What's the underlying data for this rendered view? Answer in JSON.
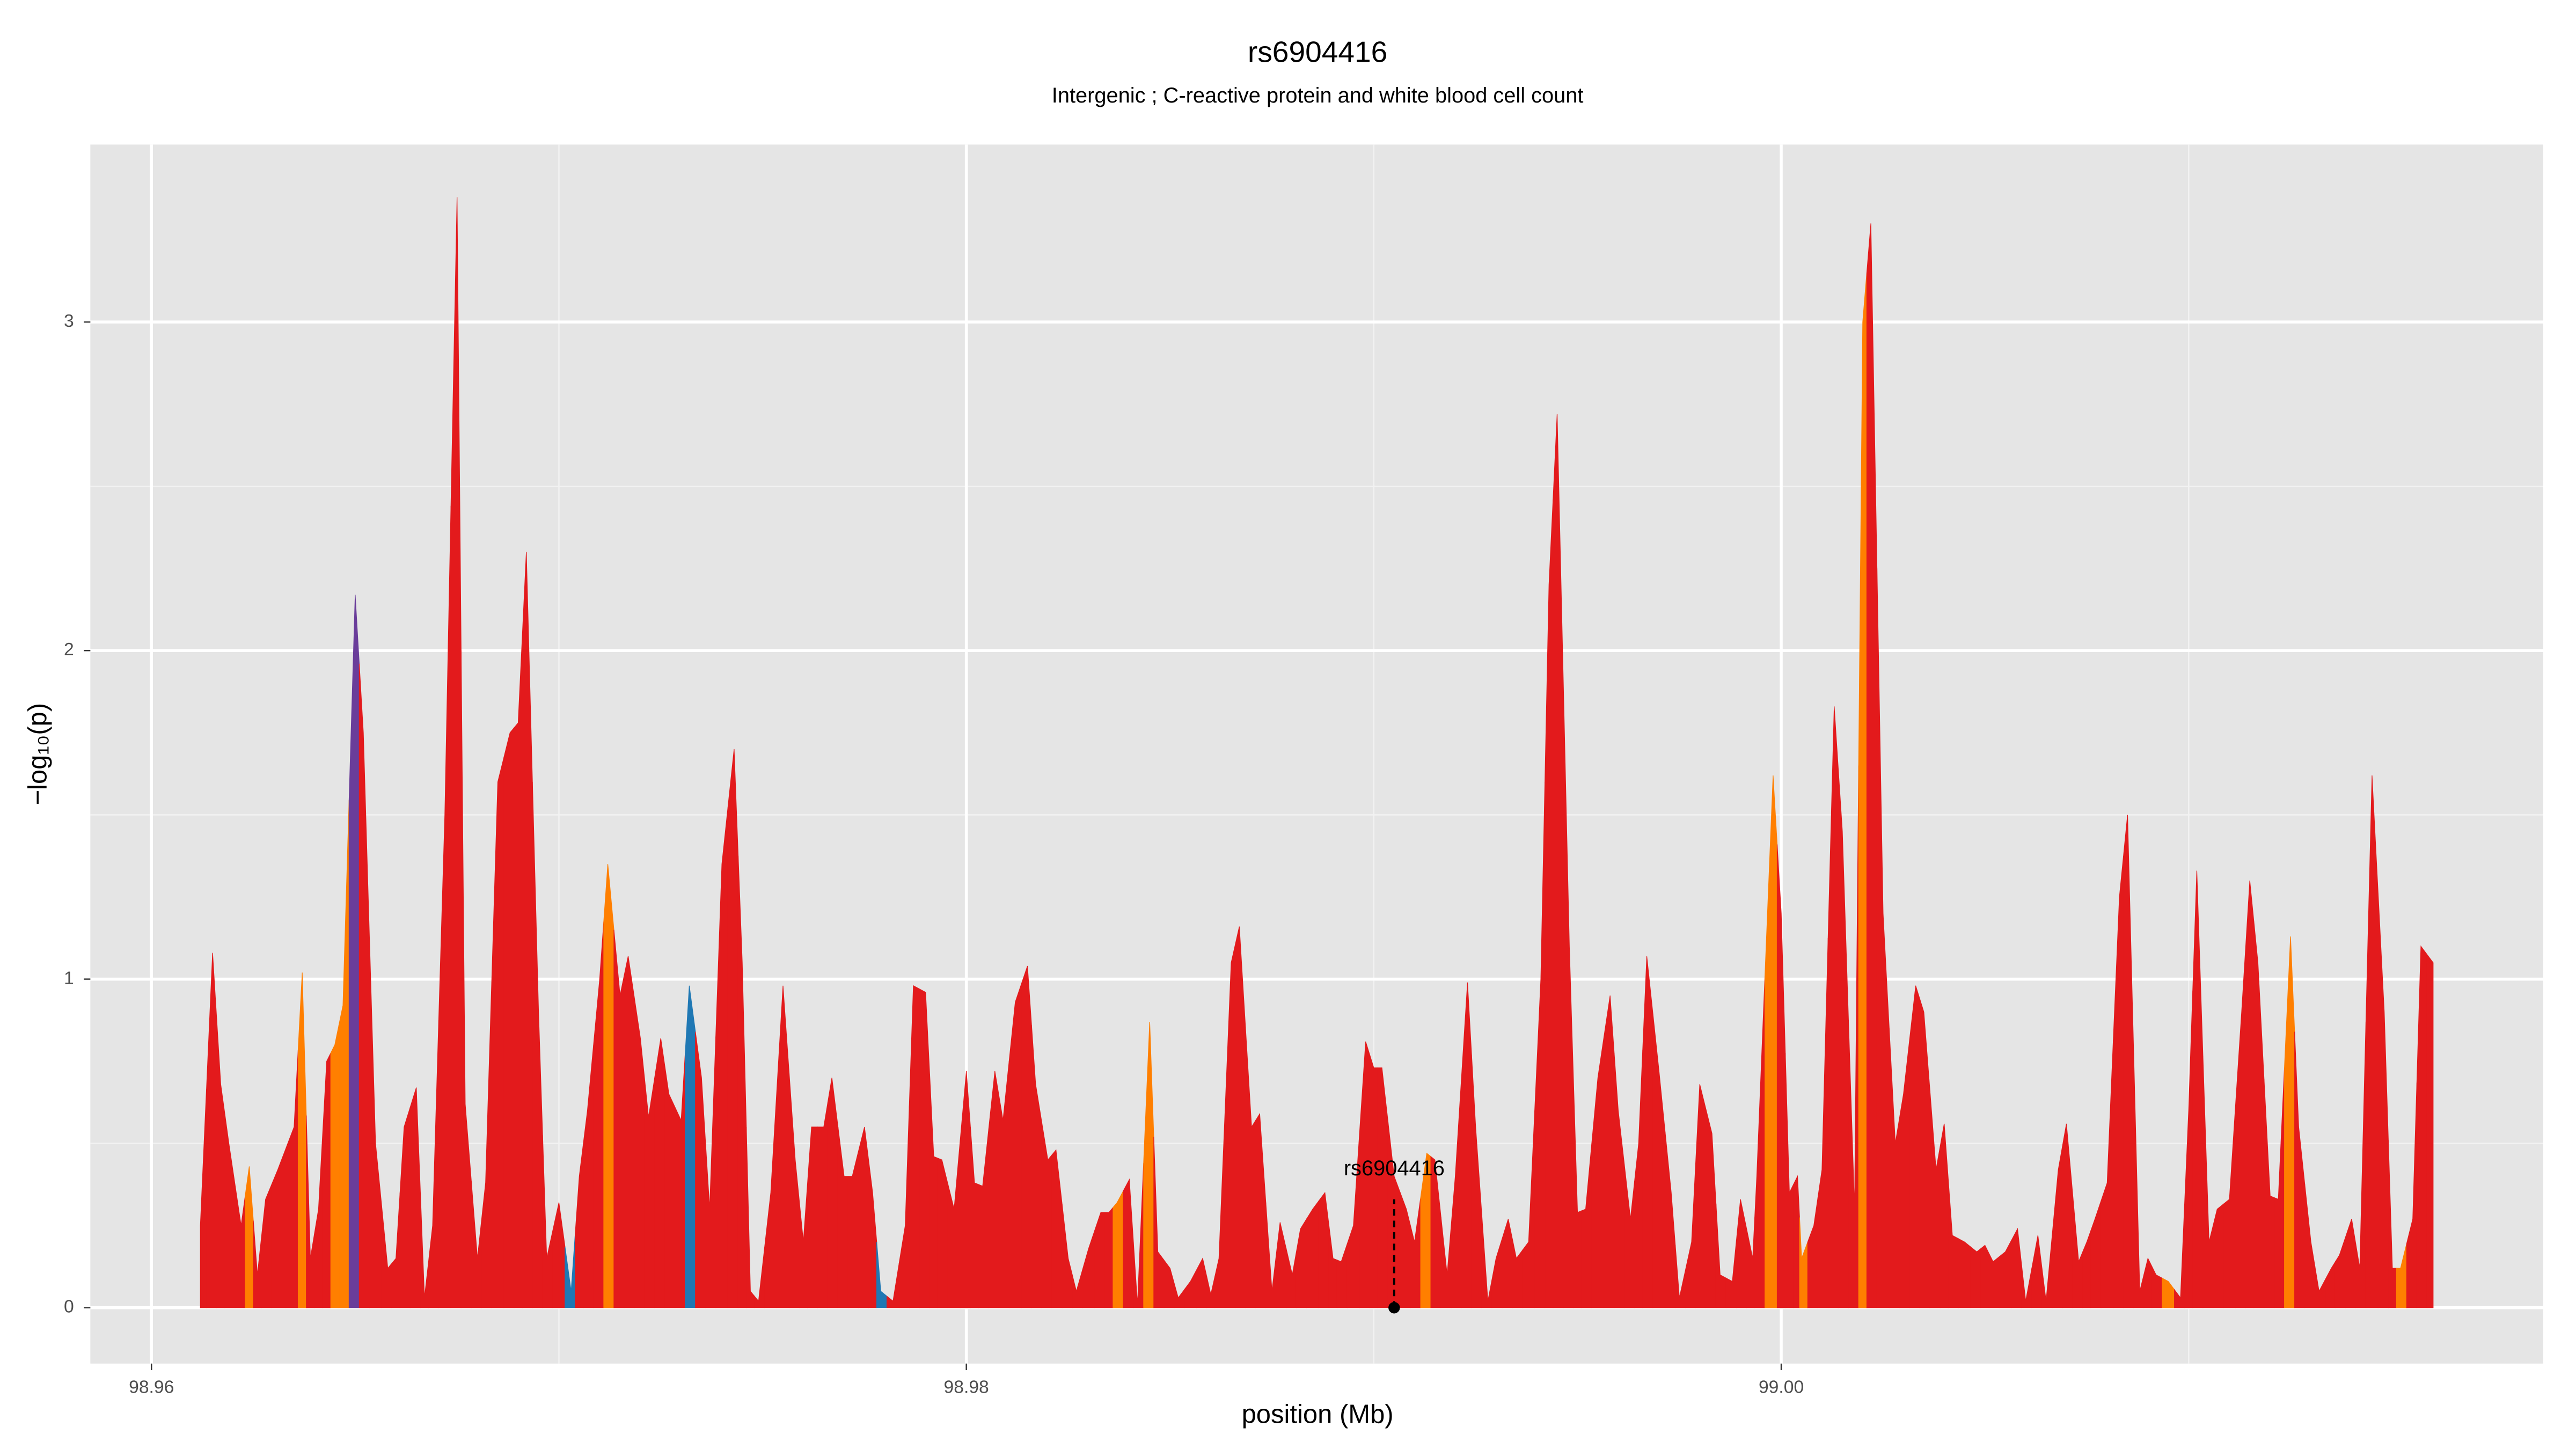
{
  "chart_data": {
    "type": "area",
    "title": "rs6904416",
    "subtitle": "Intergenic ; C-reactive protein and white blood cell count",
    "xlabel": "position (Mb)",
    "ylabel": "−log₁₀(p)",
    "xlim": [
      98.9585,
      99.0187
    ],
    "ylim": [
      -0.17,
      3.54
    ],
    "xticks": [
      98.96,
      98.98,
      {
        "value": 99,
        "label": "99.00"
      }
    ],
    "yticks": [
      0,
      1,
      2,
      3
    ],
    "minor_xticks": [
      98.97,
      98.99,
      99.01
    ],
    "minor_yticks": [
      0.5,
      1.5,
      2.5
    ],
    "grid": true,
    "x": [
      98.9612,
      98.9615,
      98.9617,
      98.9619,
      98.9622,
      98.9624,
      98.9626,
      98.9628,
      98.9631,
      98.9635,
      98.9637,
      98.9639,
      98.9641,
      98.9643,
      98.9645,
      98.9647,
      98.965,
      98.9652,
      98.9655,
      98.9658,
      98.966,
      98.9662,
      98.9665,
      98.9667,
      98.9669,
      98.9672,
      98.9675,
      98.9677,
      98.968,
      98.9682,
      98.9685,
      98.9688,
      98.969,
      98.9692,
      98.9695,
      98.9697,
      98.97,
      98.9703,
      98.9705,
      98.9707,
      98.971,
      98.9712,
      98.9715,
      98.9717,
      98.972,
      98.9722,
      98.9725,
      98.9727,
      98.973,
      98.9732,
      98.9735,
      98.9737,
      98.974,
      98.9743,
      98.9745,
      98.9747,
      98.9749,
      98.9752,
      98.9755,
      98.9758,
      98.976,
      98.9762,
      98.9765,
      98.9767,
      98.977,
      98.9772,
      98.9775,
      98.9777,
      98.9779,
      98.9782,
      98.9785,
      98.9787,
      98.979,
      98.9792,
      98.9794,
      98.9797,
      98.98,
      98.9802,
      98.9804,
      98.9807,
      98.9809,
      98.9812,
      98.9815,
      98.9817,
      98.982,
      98.9822,
      98.9825,
      98.9827,
      98.983,
      98.9833,
      98.9835,
      98.9837,
      98.984,
      98.9842,
      98.9845,
      98.9847,
      98.985,
      98.9852,
      98.9855,
      98.9858,
      98.986,
      98.9862,
      98.9865,
      98.9867,
      98.987,
      98.9872,
      98.9875,
      98.9877,
      98.988,
      98.9882,
      98.9885,
      98.9888,
      98.989,
      98.9892,
      98.9895,
      98.9898,
      98.99,
      98.9902,
      98.9905,
      98.9908,
      98.991,
      98.9913,
      98.9915,
      98.9918,
      98.992,
      98.9923,
      98.9925,
      98.9928,
      98.993,
      98.9933,
      98.9935,
      98.9938,
      98.9941,
      98.9943,
      98.9945,
      98.9948,
      98.995,
      98.9952,
      98.9955,
      98.9958,
      98.996,
      98.9963,
      98.9965,
      98.9967,
      98.997,
      98.9973,
      98.9975,
      98.9978,
      98.998,
      98.9983,
      98.9985,
      98.9988,
      98.999,
      98.9993,
      98.9994,
      98.9998,
      99.0,
      99.0002,
      99.0004,
      99.0005,
      99.0008,
      99.001,
      99.0013,
      99.0015,
      99.0018,
      99.002,
      99.0022,
      99.0025,
      99.0028,
      99.003,
      99.0033,
      99.0035,
      99.0038,
      99.004,
      99.0042,
      99.0045,
      99.0048,
      99.005,
      99.0052,
      99.0055,
      99.0058,
      99.006,
      99.0063,
      99.0065,
      99.0068,
      99.007,
      99.0073,
      99.0075,
      99.0077,
      99.008,
      99.0083,
      99.0085,
      99.0088,
      99.009,
      99.0092,
      99.0095,
      99.0098,
      99.01,
      99.0102,
      99.0105,
      99.0107,
      99.011,
      99.0113,
      99.0115,
      99.0117,
      99.012,
      99.0122,
      99.0125,
      99.0127,
      99.013,
      99.0132,
      99.0135,
      99.0137,
      99.014,
      99.0142,
      99.0145,
      99.0148,
      99.015,
      99.0152,
      99.0155,
      99.0157,
      99.016
    ],
    "values": [
      0.25,
      1.08,
      0.68,
      0.5,
      0.25,
      0.43,
      0.1,
      0.33,
      0.42,
      0.55,
      1.02,
      0.15,
      0.3,
      0.75,
      0.8,
      0.92,
      2.17,
      1.75,
      0.5,
      0.12,
      0.15,
      0.55,
      0.67,
      0.03,
      0.25,
      1.5,
      3.38,
      0.62,
      0.15,
      0.38,
      1.6,
      1.75,
      1.78,
      2.3,
      0.9,
      0.15,
      0.32,
      0.05,
      0.4,
      0.6,
      1.0,
      1.35,
      0.95,
      1.07,
      0.82,
      0.58,
      0.82,
      0.65,
      0.57,
      0.98,
      0.7,
      0.3,
      1.35,
      1.7,
      1.05,
      0.05,
      0.02,
      0.35,
      0.98,
      0.45,
      0.2,
      0.55,
      0.55,
      0.7,
      0.4,
      0.4,
      0.55,
      0.35,
      0.05,
      0.02,
      0.25,
      0.98,
      0.96,
      0.46,
      0.45,
      0.3,
      0.72,
      0.38,
      0.37,
      0.72,
      0.57,
      0.93,
      1.04,
      0.68,
      0.45,
      0.48,
      0.15,
      0.05,
      0.18,
      0.29,
      0.29,
      0.32,
      0.39,
      0.01,
      0.87,
      0.17,
      0.12,
      0.03,
      0.08,
      0.15,
      0.04,
      0.15,
      1.05,
      1.16,
      0.55,
      0.59,
      0.05,
      0.26,
      0.1,
      0.24,
      0.3,
      0.35,
      0.15,
      0.14,
      0.25,
      0.81,
      0.73,
      0.73,
      0.4,
      0.3,
      0.2,
      0.47,
      0.45,
      0.1,
      0.4,
      0.99,
      0.55,
      0.02,
      0.15,
      0.27,
      0.15,
      0.2,
      1.0,
      2.2,
      2.72,
      1.1,
      0.29,
      0.3,
      0.7,
      0.95,
      0.6,
      0.27,
      0.5,
      1.07,
      0.72,
      0.35,
      0.03,
      0.2,
      0.68,
      0.53,
      0.1,
      0.08,
      0.33,
      0.15,
      0.4,
      1.62,
      1.2,
      0.35,
      0.4,
      0.15,
      0.25,
      0.42,
      1.83,
      1.45,
      0.3,
      3.0,
      3.3,
      1.2,
      0.5,
      0.65,
      0.98,
      0.9,
      0.42,
      0.56,
      0.22,
      0.2,
      0.17,
      0.19,
      0.14,
      0.17,
      0.24,
      0.02,
      0.22,
      0.02,
      0.42,
      0.56,
      0.14,
      0.2,
      0.27,
      0.38,
      1.25,
      1.5,
      0.05,
      0.15,
      0.1,
      0.08,
      0.03,
      0.6,
      1.33,
      0.2,
      0.3,
      0.33,
      0.9,
      1.3,
      1.05,
      0.34,
      0.33,
      1.13,
      0.55,
      0.2,
      0.05,
      0.12,
      0.16,
      0.27,
      0.12,
      1.62,
      0.9,
      0.12,
      0.12,
      0.27,
      1.1,
      1.05
    ],
    "colors": [
      "#e31a1c",
      "#e31a1c",
      "#e31a1c",
      "#e31a1c",
      "#e31a1c",
      "#ff7f00",
      "#e31a1c",
      "#e31a1c",
      "#e31a1c",
      "#e31a1c",
      "#ff7f00",
      "#e31a1c",
      "#e31a1c",
      "#e31a1c",
      "#ff7f00",
      "#ff7f00",
      "#6a3d9a",
      "#e31a1c",
      "#e31a1c",
      "#e31a1c",
      "#e31a1c",
      "#e31a1c",
      "#e31a1c",
      "#e31a1c",
      "#e31a1c",
      "#e31a1c",
      "#e31a1c",
      "#e31a1c",
      "#e31a1c",
      "#e31a1c",
      "#e31a1c",
      "#e31a1c",
      "#e31a1c",
      "#e31a1c",
      "#e31a1c",
      "#e31a1c",
      "#e31a1c",
      "#1f78b4",
      "#e31a1c",
      "#e31a1c",
      "#e31a1c",
      "#ff7f00",
      "#e31a1c",
      "#e31a1c",
      "#e31a1c",
      "#e31a1c",
      "#e31a1c",
      "#e31a1c",
      "#e31a1c",
      "#1f78b4",
      "#e31a1c",
      "#e31a1c",
      "#e31a1c",
      "#e31a1c",
      "#e31a1c",
      "#e31a1c",
      "#e31a1c",
      "#e31a1c",
      "#e31a1c",
      "#e31a1c",
      "#e31a1c",
      "#e31a1c",
      "#e31a1c",
      "#e31a1c",
      "#e31a1c",
      "#e31a1c",
      "#e31a1c",
      "#e31a1c",
      "#1f78b4",
      "#e31a1c",
      "#e31a1c",
      "#e31a1c",
      "#e31a1c",
      "#e31a1c",
      "#e31a1c",
      "#e31a1c",
      "#e31a1c",
      "#e31a1c",
      "#e31a1c",
      "#e31a1c",
      "#e31a1c",
      "#e31a1c",
      "#e31a1c",
      "#e31a1c",
      "#e31a1c",
      "#e31a1c",
      "#e31a1c",
      "#e31a1c",
      "#e31a1c",
      "#e31a1c",
      "#e31a1c",
      "#ff7f00",
      "#e31a1c",
      "#e31a1c",
      "#ff7f00",
      "#e31a1c",
      "#e31a1c",
      "#e31a1c",
      "#e31a1c",
      "#e31a1c",
      "#e31a1c",
      "#e31a1c",
      "#e31a1c",
      "#e31a1c",
      "#e31a1c",
      "#e31a1c",
      "#e31a1c",
      "#e31a1c",
      "#e31a1c",
      "#e31a1c",
      "#e31a1c",
      "#e31a1c",
      "#e31a1c",
      "#e31a1c",
      "#e31a1c",
      "#e31a1c",
      "#e31a1c",
      "#e31a1c",
      "#e31a1c",
      "#e31a1c",
      "#e31a1c",
      "#ff7f00",
      "#e31a1c",
      "#e31a1c",
      "#e31a1c",
      "#e31a1c",
      "#e31a1c",
      "#e31a1c",
      "#e31a1c",
      "#e31a1c",
      "#e31a1c",
      "#e31a1c",
      "#e31a1c",
      "#e31a1c",
      "#e31a1c",
      "#e31a1c",
      "#e31a1c",
      "#e31a1c",
      "#e31a1c",
      "#e31a1c",
      "#e31a1c",
      "#e31a1c",
      "#e31a1c",
      "#e31a1c",
      "#e31a1c",
      "#e31a1c",
      "#e31a1c",
      "#e31a1c",
      "#e31a1c",
      "#e31a1c",
      "#e31a1c",
      "#e31a1c",
      "#e31a1c",
      "#e31a1c",
      "#e31a1c",
      "#ff7f00",
      "#e31a1c",
      "#e31a1c",
      "#e31a1c",
      "#ff7f00",
      "#e31a1c",
      "#e31a1c",
      "#e31a1c",
      "#e31a1c",
      "#e31a1c",
      "#ff7f00",
      "#e31a1c",
      "#e31a1c",
      "#e31a1c",
      "#e31a1c",
      "#e31a1c",
      "#e31a1c",
      "#e31a1c",
      "#e31a1c",
      "#e31a1c",
      "#e31a1c",
      "#e31a1c",
      "#e31a1c",
      "#e31a1c",
      "#e31a1c",
      "#e31a1c",
      "#e31a1c",
      "#e31a1c",
      "#e31a1c",
      "#e31a1c",
      "#e31a1c",
      "#e31a1c",
      "#e31a1c",
      "#e31a1c",
      "#e31a1c",
      "#e31a1c",
      "#e31a1c",
      "#e31a1c",
      "#e31a1c",
      "#e31a1c",
      "#ff7f00",
      "#e31a1c",
      "#e31a1c",
      "#e31a1c",
      "#e31a1c",
      "#e31a1c",
      "#e31a1c",
      "#e31a1c",
      "#e31a1c",
      "#e31a1c",
      "#e31a1c",
      "#e31a1c",
      "#ff7f00",
      "#e31a1c",
      "#e31a1c",
      "#e31a1c",
      "#e31a1c",
      "#e31a1c",
      "#e31a1c",
      "#e31a1c",
      "#e31a1c",
      "#e31a1c",
      "#e31a1c",
      "#ff7f00",
      "#e31a1c",
      "#e31a1c",
      "#e31a1c"
    ],
    "annotations": [
      {
        "label": "rs6904416",
        "x": 98.9905,
        "y": 0
      }
    ]
  }
}
